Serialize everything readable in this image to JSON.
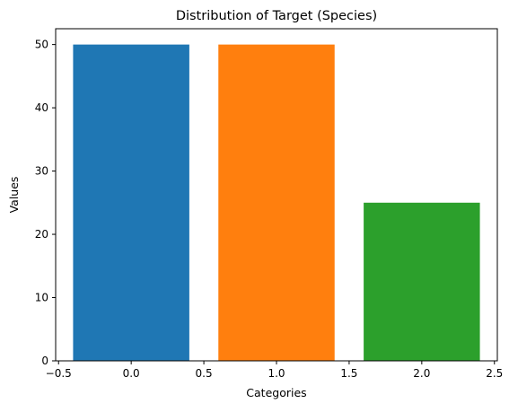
{
  "chart_data": {
    "type": "bar",
    "title": "Distribution of Target (Species)",
    "xlabel": "Categories",
    "ylabel": "Values",
    "x": [
      0,
      1,
      2
    ],
    "values": [
      50,
      50,
      25
    ],
    "bar_width": 0.8,
    "colors": [
      "#1f77b4",
      "#ff7f0e",
      "#2ca02c"
    ],
    "xlim": [
      -0.52,
      2.52
    ],
    "ylim": [
      0,
      52.5
    ],
    "xticks": [
      -0.5,
      0.0,
      0.5,
      1.0,
      1.5,
      2.0,
      2.5
    ],
    "xtick_labels": [
      "−0.5",
      "0.0",
      "0.5",
      "1.0",
      "1.5",
      "2.0",
      "2.5"
    ],
    "yticks": [
      0,
      10,
      20,
      30,
      40,
      50
    ],
    "ytick_labels": [
      "0",
      "10",
      "20",
      "30",
      "40",
      "50"
    ],
    "grid": false,
    "legend": "none"
  }
}
